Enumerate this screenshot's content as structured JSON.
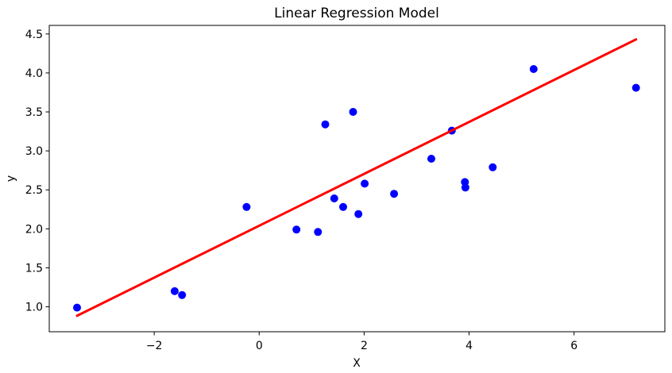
{
  "chart_data": {
    "type": "scatter",
    "title": "Linear Regression Model",
    "xlabel": "X",
    "ylabel": "y",
    "xlim": [
      -4.0,
      7.73
    ],
    "ylim": [
      0.68,
      4.61
    ],
    "grid": false,
    "legend": false,
    "x_ticks": {
      "values": [
        -2,
        0,
        2,
        4,
        6
      ],
      "labels": [
        "−2",
        "0",
        "2",
        "4",
        "6"
      ]
    },
    "y_ticks": {
      "values": [
        1.0,
        1.5,
        2.0,
        2.5,
        3.0,
        3.5,
        4.0,
        4.5
      ],
      "labels": [
        "1.0",
        "1.5",
        "2.0",
        "2.5",
        "3.0",
        "3.5",
        "4.0",
        "4.5"
      ]
    },
    "series": [
      {
        "name": "data points",
        "kind": "scatter",
        "color": "#0000ff",
        "marker_radius": 5,
        "points": [
          [
            -3.47,
            0.99
          ],
          [
            -1.61,
            1.2
          ],
          [
            -1.47,
            1.15
          ],
          [
            -0.24,
            2.28
          ],
          [
            0.71,
            1.99
          ],
          [
            1.12,
            1.96
          ],
          [
            1.26,
            3.34
          ],
          [
            1.43,
            2.39
          ],
          [
            1.6,
            2.28
          ],
          [
            1.79,
            3.5
          ],
          [
            1.89,
            2.19
          ],
          [
            2.01,
            2.58
          ],
          [
            2.57,
            2.45
          ],
          [
            3.28,
            2.9
          ],
          [
            3.67,
            3.26
          ],
          [
            3.92,
            2.6
          ],
          [
            3.93,
            2.53
          ],
          [
            4.45,
            2.79
          ],
          [
            5.23,
            4.05
          ],
          [
            7.18,
            3.81
          ]
        ]
      },
      {
        "name": "regression line",
        "kind": "line",
        "color": "#ff0000",
        "line_width": 3,
        "points": [
          [
            -3.47,
            0.885
          ],
          [
            7.18,
            4.43
          ]
        ]
      }
    ],
    "colors": {
      "background": "#ffffff",
      "spines": "#000000",
      "text": "#000000",
      "marker": "#0000ff",
      "line": "#ff0000"
    }
  }
}
